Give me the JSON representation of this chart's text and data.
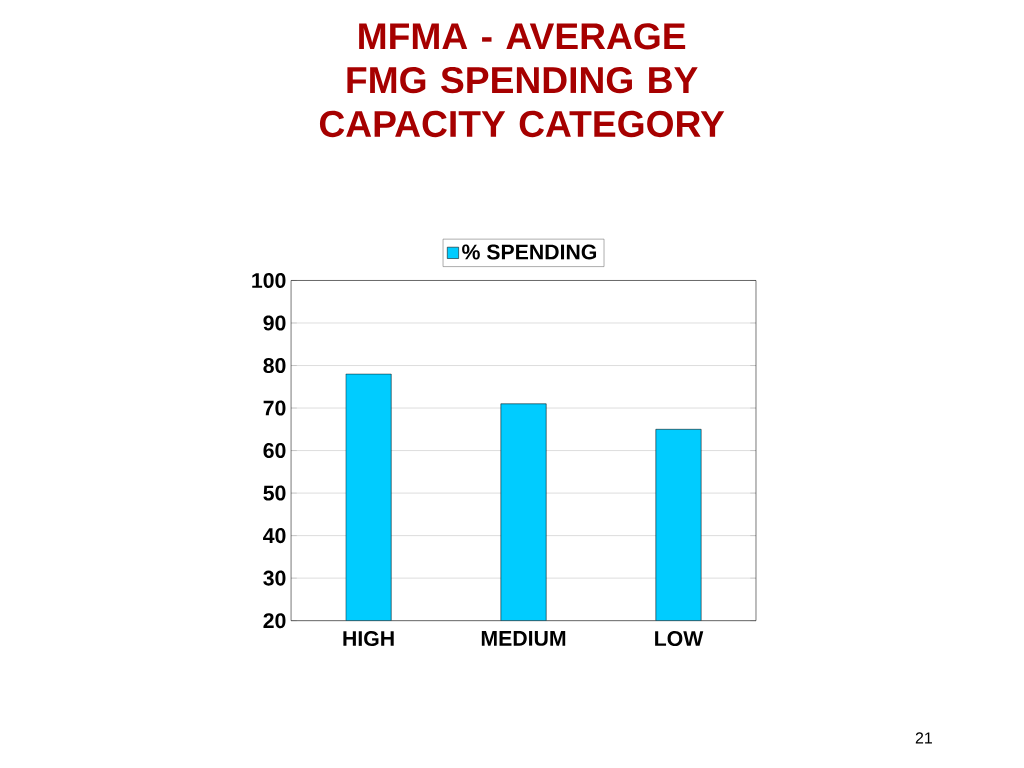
{
  "chart_data": {
    "type": "bar",
    "title": "MFMA - AVERAGE FMG SPENDING BY CAPACITY CATEGORY",
    "categories": [
      "HIGH",
      "MEDIUM",
      "LOW"
    ],
    "series": [
      {
        "name": "% SPENDING",
        "color": "#00ccff",
        "values": [
          78,
          71,
          65
        ]
      }
    ],
    "ylim": [
      20,
      100
    ],
    "yticks": [
      20,
      30,
      40,
      50,
      60,
      70,
      80,
      90,
      100
    ],
    "grid": "y",
    "legend": "top",
    "annotations": [
      "21"
    ]
  }
}
